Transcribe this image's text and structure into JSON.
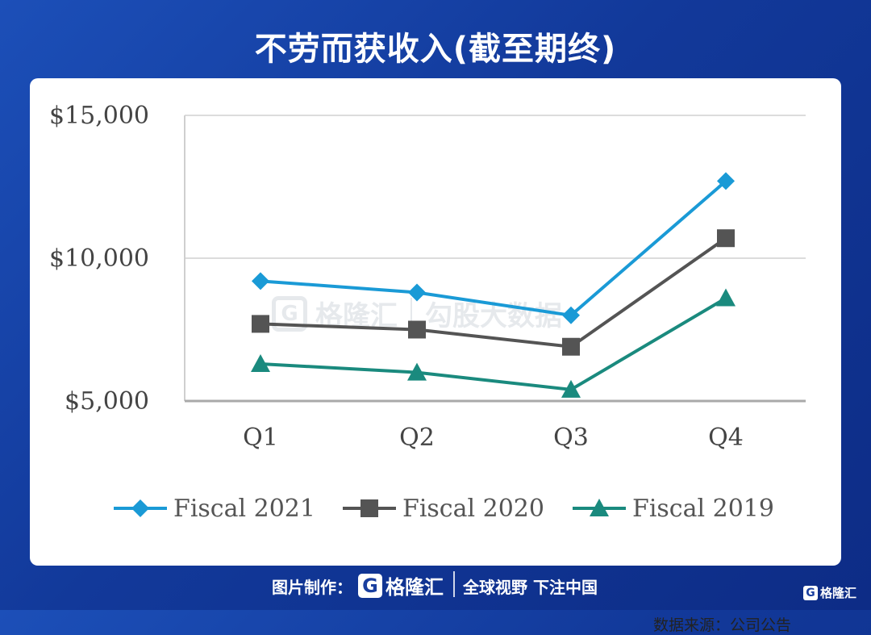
{
  "title": "不劳而获收入(截至期终)",
  "source": "数据来源：公司公告",
  "footer": {
    "maker_label": "图片制作：",
    "logo_letter": "G",
    "logo_name": "格隆汇",
    "slogan": "全球视野 下注中国"
  },
  "watermark": {
    "left": "格隆汇",
    "right": "勾股大数据"
  },
  "chart_data": {
    "type": "line",
    "categories": [
      "Q1",
      "Q2",
      "Q3",
      "Q4"
    ],
    "y_tick_labels": [
      "$15,000",
      "$10,000",
      "$5,000"
    ],
    "y_ticks": [
      15000,
      10000,
      5000
    ],
    "ylim": [
      5000,
      15000
    ],
    "grid": true,
    "legend_position": "bottom",
    "series": [
      {
        "name": "Fiscal 2021",
        "marker": "diamond",
        "color": "#1a9ad6",
        "values": [
          9200,
          8800,
          8000,
          12700
        ]
      },
      {
        "name": "Fiscal 2020",
        "marker": "square",
        "color": "#545454",
        "values": [
          7700,
          7500,
          6900,
          10700
        ]
      },
      {
        "name": "Fiscal 2019",
        "marker": "triangle",
        "color": "#1a8a7e",
        "values": [
          6300,
          6000,
          5400,
          8600
        ]
      }
    ]
  }
}
